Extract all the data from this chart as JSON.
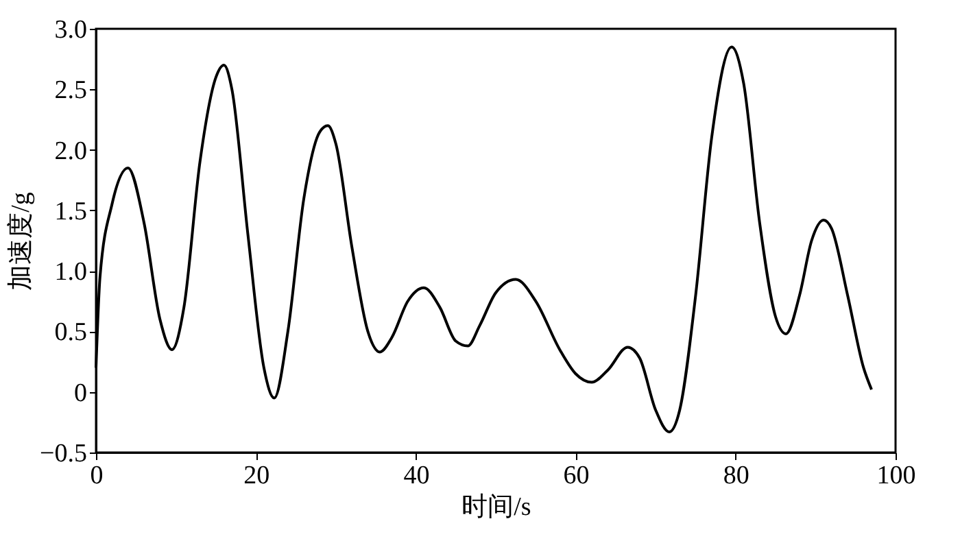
{
  "chart_data": {
    "type": "line",
    "xlabel": "时间/s",
    "ylabel": "加速度/g",
    "x": [
      0,
      0.5,
      2,
      4,
      6,
      8,
      9.5,
      11,
      13,
      15,
      16,
      17,
      19,
      21,
      22.3,
      24,
      26,
      28,
      29,
      30,
      32,
      34,
      35.5,
      37,
      39,
      41,
      43,
      45,
      46.5,
      48,
      50,
      52.5,
      55,
      58,
      60,
      62,
      64,
      66.5,
      68,
      70,
      71.7,
      73,
      75,
      77,
      79.5,
      81,
      83,
      85,
      86.3,
      88,
      89.5,
      91,
      92,
      94,
      96,
      97
    ],
    "series": [
      {
        "color": "#000000",
        "values": [
          0.2,
          0.95,
          1.55,
          1.85,
          1.4,
          0.6,
          0.35,
          0.7,
          1.9,
          2.6,
          2.7,
          2.5,
          1.3,
          0.2,
          -0.05,
          0.5,
          1.6,
          2.15,
          2.2,
          2.05,
          1.2,
          0.5,
          0.33,
          0.45,
          0.75,
          0.86,
          0.7,
          0.42,
          0.38,
          0.55,
          0.82,
          0.93,
          0.75,
          0.35,
          0.15,
          0.08,
          0.18,
          0.37,
          0.28,
          -0.15,
          -0.33,
          -0.15,
          0.8,
          2.1,
          2.85,
          2.55,
          1.4,
          0.62,
          0.48,
          0.8,
          1.25,
          1.42,
          1.35,
          0.8,
          0.2,
          0.02
        ]
      }
    ],
    "xlim": [
      0,
      100
    ],
    "xticks": [
      0,
      20,
      40,
      60,
      80,
      100
    ],
    "ylim": [
      -0.5,
      3.0
    ],
    "yticks": [
      {
        "value": -0.5,
        "label": "−0.5"
      },
      0,
      0.5,
      {
        "value": 1,
        "label": "1.0"
      },
      1.5,
      {
        "value": 2,
        "label": "2.0"
      },
      2.5,
      {
        "value": 3,
        "label": "3.0"
      }
    ],
    "grid": false,
    "marker": "none",
    "line_style": "solid"
  }
}
